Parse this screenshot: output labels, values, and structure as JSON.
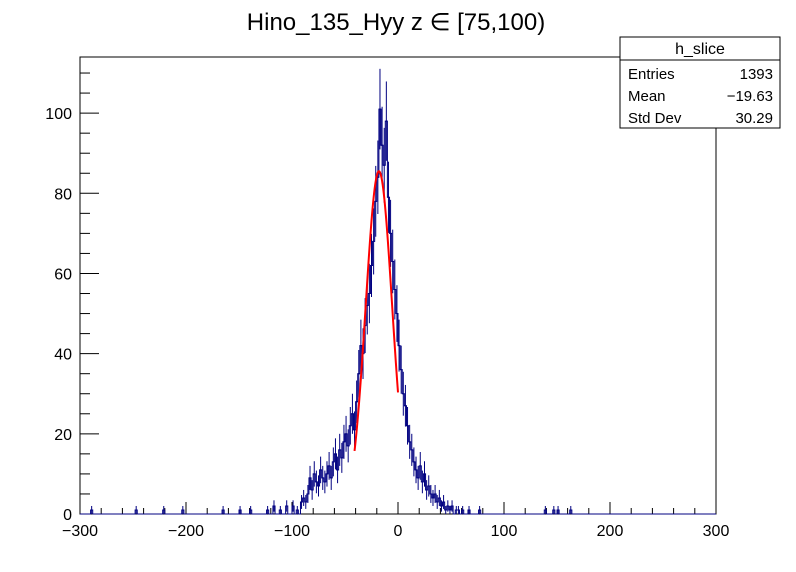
{
  "chart_data": {
    "type": "histogram",
    "title": "Hino_135_Hyy z  ∈ [75,100)",
    "xlim": [
      -300,
      300
    ],
    "ylim": [
      0,
      114
    ],
    "bin_width": 2,
    "x_ticks": [
      {
        "value": -300,
        "label": "−300"
      },
      {
        "value": -200,
        "label": "−200"
      },
      {
        "value": -100,
        "label": "−100"
      },
      {
        "value": 0,
        "label": "0"
      },
      {
        "value": 100,
        "label": "100"
      },
      {
        "value": 200,
        "label": "200"
      },
      {
        "value": 300,
        "label": "300"
      }
    ],
    "y_ticks": [
      {
        "value": 0,
        "label": "0"
      },
      {
        "value": 20,
        "label": "20"
      },
      {
        "value": 40,
        "label": "40"
      },
      {
        "value": 60,
        "label": "60"
      },
      {
        "value": 80,
        "label": "80"
      },
      {
        "value": 100,
        "label": "100"
      }
    ],
    "grid": false,
    "series": [
      {
        "kind": "histogram",
        "color": "#000080",
        "bins": [
          [
            -290,
            1
          ],
          [
            -248,
            1
          ],
          [
            -222,
            1
          ],
          [
            -204,
            1
          ],
          [
            -166,
            1
          ],
          [
            -150,
            1
          ],
          [
            -140,
            1
          ],
          [
            -124,
            1
          ],
          [
            -118,
            2
          ],
          [
            -112,
            1
          ],
          [
            -106,
            2
          ],
          [
            -100,
            2
          ],
          [
            -96,
            1
          ],
          [
            -92,
            3
          ],
          [
            -90,
            4
          ],
          [
            -88,
            3
          ],
          [
            -86,
            5
          ],
          [
            -84,
            9
          ],
          [
            -82,
            6
          ],
          [
            -80,
            10
          ],
          [
            -78,
            8
          ],
          [
            -76,
            7
          ],
          [
            -74,
            11
          ],
          [
            -72,
            9
          ],
          [
            -70,
            8
          ],
          [
            -68,
            10
          ],
          [
            -66,
            12
          ],
          [
            -64,
            9
          ],
          [
            -62,
            13
          ],
          [
            -60,
            15
          ],
          [
            -58,
            11
          ],
          [
            -56,
            16
          ],
          [
            -54,
            14
          ],
          [
            -52,
            18
          ],
          [
            -50,
            20
          ],
          [
            -48,
            17
          ],
          [
            -46,
            22
          ],
          [
            -44,
            25
          ],
          [
            -42,
            21
          ],
          [
            -40,
            28
          ],
          [
            -38,
            35
          ],
          [
            -36,
            42
          ],
          [
            -34,
            40
          ],
          [
            -32,
            47
          ],
          [
            -30,
            52
          ],
          [
            -28,
            55
          ],
          [
            -26,
            62
          ],
          [
            -24,
            68
          ],
          [
            -22,
            78
          ],
          [
            -20,
            84
          ],
          [
            -18,
            101
          ],
          [
            -16,
            92
          ],
          [
            -14,
            87
          ],
          [
            -12,
            98
          ],
          [
            -10,
            79
          ],
          [
            -8,
            70
          ],
          [
            -6,
            63
          ],
          [
            -4,
            56
          ],
          [
            -2,
            50
          ],
          [
            0,
            42
          ],
          [
            2,
            36
          ],
          [
            4,
            30
          ],
          [
            6,
            27
          ],
          [
            8,
            22
          ],
          [
            10,
            18
          ],
          [
            12,
            16
          ],
          [
            14,
            13
          ],
          [
            16,
            11
          ],
          [
            18,
            9
          ],
          [
            20,
            12
          ],
          [
            22,
            8
          ],
          [
            24,
            10
          ],
          [
            26,
            6
          ],
          [
            28,
            7
          ],
          [
            30,
            5
          ],
          [
            32,
            4
          ],
          [
            34,
            5
          ],
          [
            36,
            3
          ],
          [
            38,
            4
          ],
          [
            40,
            2
          ],
          [
            42,
            3
          ],
          [
            44,
            1
          ],
          [
            46,
            2
          ],
          [
            48,
            1
          ],
          [
            50,
            2
          ],
          [
            54,
            1
          ],
          [
            56,
            1
          ],
          [
            60,
            1
          ],
          [
            66,
            1
          ],
          [
            76,
            1
          ],
          [
            138,
            1
          ],
          [
            146,
            1
          ],
          [
            150,
            1
          ],
          [
            162,
            1
          ]
        ]
      },
      {
        "kind": "gaussian_fit",
        "color": "#ff0000",
        "amplitude": 85.5,
        "mean": -18,
        "sigma": 12.5,
        "range": [
          -41,
          0
        ]
      }
    ],
    "stats_box": {
      "title": "h_slice",
      "rows": [
        {
          "label": "Entries",
          "value": "1393"
        },
        {
          "label": "Mean",
          "value": "−19.63"
        },
        {
          "label": "Std Dev",
          "value": "30.29"
        }
      ]
    }
  }
}
